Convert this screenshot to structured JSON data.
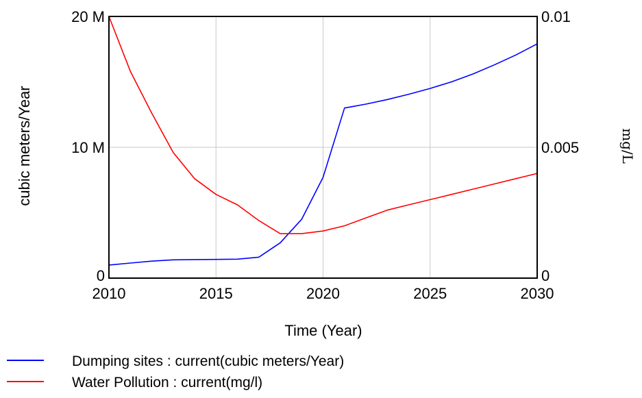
{
  "chart_data": {
    "type": "line",
    "xlabel": "Time (Year)",
    "ylabel_left": "cubic meters/Year",
    "ylabel_right": "mg/L",
    "xlim": [
      2010,
      2030
    ],
    "ylim_left": [
      0,
      20000000
    ],
    "ylim_right": [
      0,
      0.01
    ],
    "x_ticks": [
      "2010",
      "2015",
      "2020",
      "2025",
      "2030"
    ],
    "y_left_ticks": [
      "0",
      "10 M",
      "20 M"
    ],
    "y_right_ticks": [
      "0",
      "0.005",
      "0.01"
    ],
    "grid": true,
    "legend_position": "bottom",
    "series": [
      {
        "name": "Dumping sites : current(cubic meters/Year)",
        "axis": "left",
        "color": "#0000ff",
        "x": [
          2010,
          2011,
          2012,
          2013,
          2014,
          2015,
          2016,
          2017,
          2018,
          2019,
          2020,
          2021,
          2022,
          2023,
          2024,
          2025,
          2026,
          2027,
          2028,
          2029,
          2030
        ],
        "values": [
          1000000,
          1150000,
          1300000,
          1400000,
          1420000,
          1430000,
          1450000,
          1600000,
          2700000,
          4500000,
          7700000,
          13000000,
          13300000,
          13650000,
          14050000,
          14500000,
          15000000,
          15600000,
          16300000,
          17050000,
          17900000
        ]
      },
      {
        "name": "Water Pollution : current(mg/l)",
        "axis": "right",
        "color": "#ff0000",
        "x": [
          2010,
          2011,
          2012,
          2013,
          2014,
          2015,
          2016,
          2017,
          2018,
          2019,
          2020,
          2021,
          2022,
          2023,
          2024,
          2025,
          2026,
          2027,
          2028,
          2029,
          2030
        ],
        "values": [
          0.01,
          0.0079,
          0.0063,
          0.0048,
          0.0038,
          0.0032,
          0.0028,
          0.0022,
          0.0017,
          0.0017,
          0.0018,
          0.002,
          0.0023,
          0.0026,
          0.0028,
          0.003,
          0.0032,
          0.0034,
          0.0036,
          0.0038,
          0.004
        ]
      }
    ]
  }
}
